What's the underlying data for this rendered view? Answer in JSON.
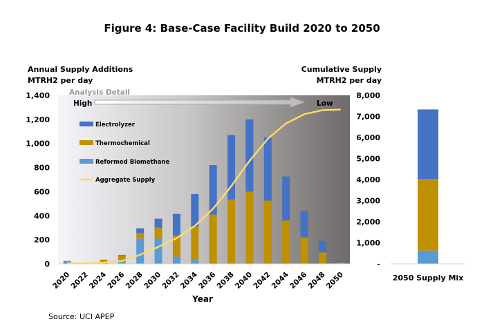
{
  "chart_data": [
    {
      "type": "bar",
      "stacked": true,
      "title": "Figure 4: Base-Case Facility Build 2020 to 2050",
      "ylabel_left": [
        "Annual Supply Additions",
        "MTRH2 per day"
      ],
      "ylabel_right": [
        "Cumulative Supply",
        "MTRH2 per day"
      ],
      "xlabel": "Year",
      "ylim_left": [
        0,
        1400
      ],
      "yticks_left": [
        "0",
        "200",
        "400",
        "600",
        "800",
        "1,000",
        "1,200",
        "1,400"
      ],
      "ylim_right": [
        0,
        8000
      ],
      "yticks_right": [
        "-",
        "1,000",
        "2,000",
        "3,000",
        "4,000",
        "5,000",
        "6,000",
        "7,000",
        "8,000"
      ],
      "categories": [
        "2020",
        "2022",
        "2024",
        "2026",
        "2028",
        "2030",
        "2032",
        "2034",
        "2036",
        "2038",
        "2040",
        "2042",
        "2044",
        "2046",
        "2048",
        "2050"
      ],
      "series": [
        {
          "name": "Reformed Biomethane",
          "color": "#5B9BD5",
          "values": [
            25,
            0,
            10,
            40,
            210,
            210,
            60,
            40,
            0,
            0,
            0,
            0,
            0,
            0,
            0,
            0
          ]
        },
        {
          "name": "Thermochemical",
          "color": "#BF9000",
          "values": [
            0,
            0,
            25,
            30,
            45,
            90,
            175,
            270,
            410,
            535,
            600,
            525,
            360,
            220,
            95,
            12
          ]
        },
        {
          "name": "Electrolyzer",
          "color": "#4472C4",
          "values": [
            0,
            0,
            0,
            5,
            40,
            75,
            180,
            270,
            410,
            535,
            600,
            525,
            365,
            220,
            95,
            15
          ]
        }
      ],
      "line": {
        "name": "Aggregate Supply",
        "color": "#FFD966",
        "axis": "right",
        "values": [
          25,
          25,
          60,
          135,
          430,
          805,
          1220,
          1800,
          2620,
          3690,
          4890,
          5940,
          6665,
          7105,
          7295,
          7325
        ]
      },
      "legend": [
        "Electrolyzer",
        "Thermochemical",
        "Reformed Biomethane",
        "Aggregate Supply"
      ],
      "legend_placement": "top-left",
      "annotation": {
        "label": "Analysis Detail",
        "start": "High",
        "end": "Low"
      },
      "grid": false,
      "background": "gradient white to dark gray"
    },
    {
      "type": "bar",
      "stacked": true,
      "categories": [
        "2050 Supply Mix"
      ],
      "series": [
        {
          "name": "Reformed Biomethane",
          "color": "#5B9BD5",
          "values": [
            630
          ]
        },
        {
          "name": "Thermochemical",
          "color": "#BF9000",
          "values": [
            3400
          ]
        },
        {
          "name": "Electrolyzer",
          "color": "#4472C4",
          "values": [
            3300
          ]
        }
      ],
      "ylim": [
        0,
        8000
      ]
    }
  ],
  "source": "Source: UCI APEP"
}
